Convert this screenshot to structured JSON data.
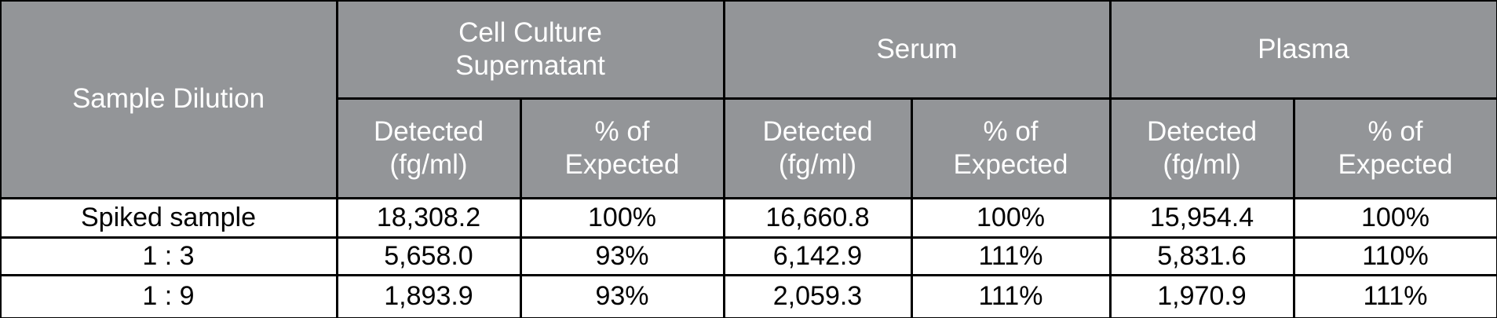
{
  "table": {
    "corner": "Sample Dilution",
    "groups": [
      {
        "label": "Cell Culture Supernatant",
        "columns": [
          "Detected (fg/ml)",
          "% of Expected"
        ]
      },
      {
        "label": "Serum",
        "columns": [
          "Detected (fg/ml)",
          "% of Expected"
        ]
      },
      {
        "label": "Plasma",
        "columns": [
          "Detected (fg/ml)",
          "% of Expected"
        ]
      }
    ],
    "rows": [
      [
        "Spiked sample",
        "18,308.2",
        "100%",
        "16,660.8",
        "100%",
        "15,954.4",
        "100%"
      ],
      [
        "1 : 3",
        "5,658.0",
        "93%",
        "6,142.9",
        "111%",
        "5,831.6",
        "110%"
      ],
      [
        "1 : 9",
        "1,893.9",
        "93%",
        "2,059.3",
        "111%",
        "1,970.9",
        "111%"
      ]
    ]
  }
}
